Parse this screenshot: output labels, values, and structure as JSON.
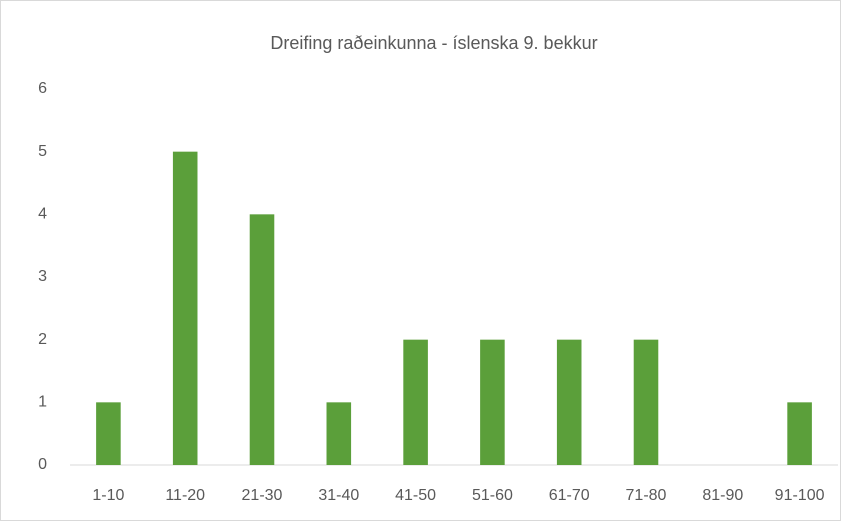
{
  "chart_data": {
    "type": "bar",
    "title": "Dreifing raðeinkunna - íslenska 9. bekkur",
    "categories": [
      "1-10",
      "11-20",
      "21-30",
      "31-40",
      "41-50",
      "51-60",
      "61-70",
      "71-80",
      "81-90",
      "91-100"
    ],
    "values": [
      1,
      5,
      4,
      1,
      2,
      2,
      2,
      2,
      0,
      1
    ],
    "color": "#5b9f3a",
    "ylim": [
      0,
      6
    ],
    "yticks": [
      0,
      1,
      2,
      3,
      4,
      5,
      6
    ],
    "grid": false
  }
}
